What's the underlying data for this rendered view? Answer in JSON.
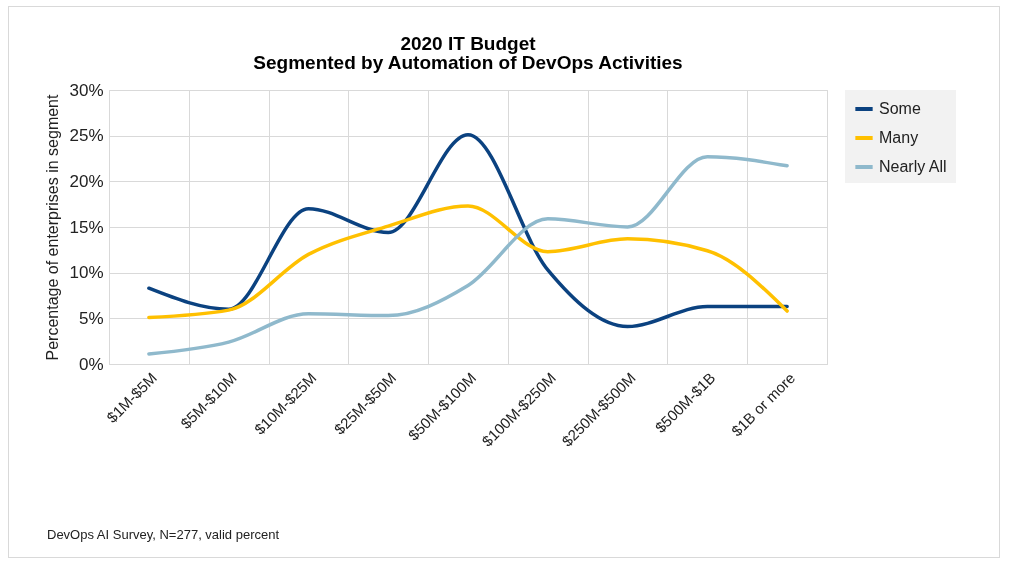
{
  "chart_data": {
    "type": "line",
    "title": "2020 IT Budget",
    "subtitle": "Segmented by Automation of DevOps Activities",
    "ylabel": "Percentage of enterprises in segment",
    "categories": [
      "$1M-$5M",
      "$5M-$10M",
      "$10M-$25M",
      "$25M-$50M",
      "$50M-$100M",
      "$100M-$250M",
      "$250M-$500M",
      "$500M-$1B",
      "$1B or more"
    ],
    "series": [
      {
        "name": "Some",
        "color": "#0b4280",
        "values": [
          8.3,
          6.0,
          17.0,
          14.4,
          25.1,
          10.3,
          4.1,
          6.3,
          6.3
        ]
      },
      {
        "name": "Many",
        "color": "#ffc000",
        "values": [
          5.1,
          5.9,
          12.0,
          15.1,
          17.3,
          12.3,
          13.7,
          12.4,
          5.8
        ]
      },
      {
        "name": "Nearly All",
        "color": "#8fb9cc",
        "values": [
          1.1,
          2.4,
          5.5,
          5.3,
          8.6,
          15.9,
          15.0,
          22.7,
          21.7
        ]
      }
    ],
    "ylim": [
      0,
      30
    ],
    "yticks": [
      {
        "value": 0,
        "label": "0%"
      },
      {
        "value": 5,
        "label": "5%"
      },
      {
        "value": 10,
        "label": "10%"
      },
      {
        "value": 15,
        "label": "15%"
      },
      {
        "value": 20,
        "label": "20%"
      },
      {
        "value": 25,
        "label": "25%"
      },
      {
        "value": 30,
        "label": "30%"
      }
    ],
    "grid": true,
    "legend": "right",
    "marker": "none",
    "line_style": "solid",
    "annotations": [
      "DevOps AI Survey, N=277, valid percent"
    ]
  }
}
